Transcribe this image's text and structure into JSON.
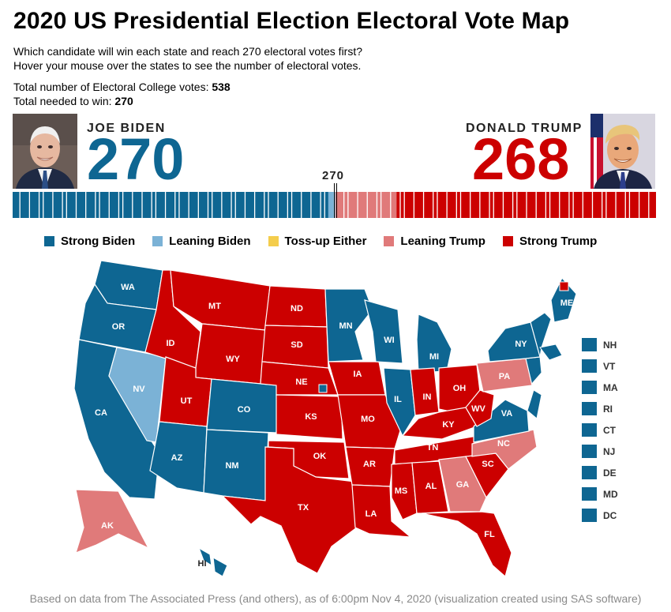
{
  "title": "2020 US Presidential Election Electoral Vote Map",
  "subtitle_lines": [
    "Which candidate will win each state and reach 270 electoral votes first?",
    "Hover your mouse over the states to see the number of electoral votes."
  ],
  "totals": {
    "total_label": "Total number of Electoral College votes: ",
    "total_value": "538",
    "needed_label": "Total needed to win: ",
    "needed_value": "270"
  },
  "biden": {
    "name": "JOE BIDEN",
    "votes": "270",
    "color": "#0e6692"
  },
  "trump": {
    "name": "DONALD TRUMP",
    "votes": "268",
    "color": "#cc0000"
  },
  "threshold_label": "270",
  "legend": [
    {
      "label": "Strong Biden",
      "color": "#0e6692"
    },
    {
      "label": "Leaning Biden",
      "color": "#7bb2d6"
    },
    {
      "label": "Toss-up Either",
      "color": "#f4cd4c"
    },
    {
      "label": "Leaning Trump",
      "color": "#e07a7a"
    },
    {
      "label": "Strong Trump",
      "color": "#cc0000"
    }
  ],
  "small_states": [
    {
      "label": "NH",
      "color": "#0e6692"
    },
    {
      "label": "VT",
      "color": "#0e6692"
    },
    {
      "label": "MA",
      "color": "#0e6692"
    },
    {
      "label": "RI",
      "color": "#0e6692"
    },
    {
      "label": "CT",
      "color": "#0e6692"
    },
    {
      "label": "NJ",
      "color": "#0e6692"
    },
    {
      "label": "DE",
      "color": "#0e6692"
    },
    {
      "label": "MD",
      "color": "#0e6692"
    },
    {
      "label": "DC",
      "color": "#0e6692"
    }
  ],
  "chart_data": {
    "type": "bar",
    "categories": [
      "Strong Biden",
      "Leaning Biden",
      "Toss-up Either",
      "Leaning Trump",
      "Strong Trump"
    ],
    "values": [
      264,
      6,
      0,
      51,
      217
    ],
    "xlim": [
      0,
      538
    ],
    "threshold": 270,
    "states": [
      {
        "code": "WA",
        "category": "Strong Biden"
      },
      {
        "code": "OR",
        "category": "Strong Biden"
      },
      {
        "code": "CA",
        "category": "Strong Biden"
      },
      {
        "code": "NV",
        "category": "Leaning Biden"
      },
      {
        "code": "ID",
        "category": "Strong Trump"
      },
      {
        "code": "MT",
        "category": "Strong Trump"
      },
      {
        "code": "WY",
        "category": "Strong Trump"
      },
      {
        "code": "UT",
        "category": "Strong Trump"
      },
      {
        "code": "AZ",
        "category": "Strong Biden"
      },
      {
        "code": "CO",
        "category": "Strong Biden"
      },
      {
        "code": "NM",
        "category": "Strong Biden"
      },
      {
        "code": "ND",
        "category": "Strong Trump"
      },
      {
        "code": "SD",
        "category": "Strong Trump"
      },
      {
        "code": "NE",
        "category": "Strong Trump"
      },
      {
        "code": "KS",
        "category": "Strong Trump"
      },
      {
        "code": "OK",
        "category": "Strong Trump"
      },
      {
        "code": "TX",
        "category": "Strong Trump"
      },
      {
        "code": "MN",
        "category": "Strong Biden"
      },
      {
        "code": "IA",
        "category": "Strong Trump"
      },
      {
        "code": "MO",
        "category": "Strong Trump"
      },
      {
        "code": "AR",
        "category": "Strong Trump"
      },
      {
        "code": "LA",
        "category": "Strong Trump"
      },
      {
        "code": "WI",
        "category": "Strong Biden"
      },
      {
        "code": "IL",
        "category": "Strong Biden"
      },
      {
        "code": "MI",
        "category": "Strong Biden"
      },
      {
        "code": "IN",
        "category": "Strong Trump"
      },
      {
        "code": "OH",
        "category": "Strong Trump"
      },
      {
        "code": "KY",
        "category": "Strong Trump"
      },
      {
        "code": "TN",
        "category": "Strong Trump"
      },
      {
        "code": "MS",
        "category": "Strong Trump"
      },
      {
        "code": "AL",
        "category": "Strong Trump"
      },
      {
        "code": "GA",
        "category": "Leaning Trump"
      },
      {
        "code": "FL",
        "category": "Strong Trump"
      },
      {
        "code": "SC",
        "category": "Strong Trump"
      },
      {
        "code": "NC",
        "category": "Leaning Trump"
      },
      {
        "code": "VA",
        "category": "Strong Biden"
      },
      {
        "code": "WV",
        "category": "Strong Trump"
      },
      {
        "code": "PA",
        "category": "Leaning Trump"
      },
      {
        "code": "NY",
        "category": "Strong Biden"
      },
      {
        "code": "ME",
        "category": "Strong Biden"
      },
      {
        "code": "AK",
        "category": "Leaning Trump"
      },
      {
        "code": "HI",
        "category": "Strong Biden"
      }
    ]
  },
  "footer": "Based on data from The Associated Press (and others), as of 6:00pm Nov 4, 2020 (visualization created using SAS software)"
}
